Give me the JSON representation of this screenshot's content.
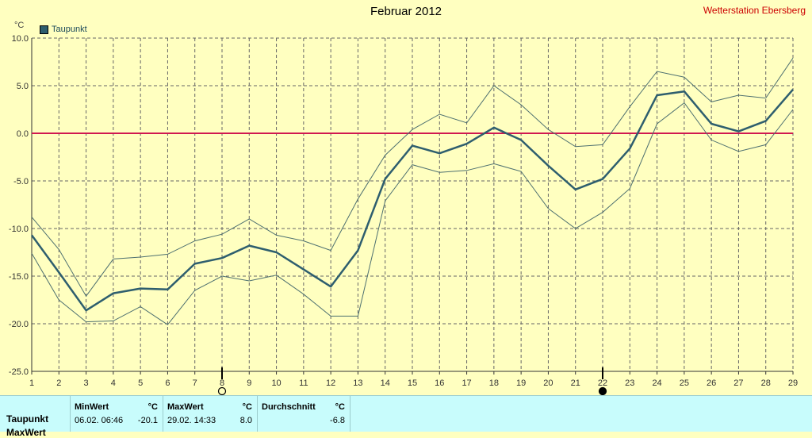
{
  "header": {
    "title": "Februar 2012",
    "station": "Wetterstation Ebersberg",
    "unit": "°C"
  },
  "legend": {
    "label": "Taupunkt"
  },
  "colors": {
    "main": "#2e5e6e",
    "band": "#4e7070",
    "zero": "#d01850",
    "grid": "#666666"
  },
  "chart_data": {
    "type": "line",
    "title": "Februar 2012",
    "ylabel": "°C",
    "xlabel": "",
    "x": [
      1,
      2,
      3,
      4,
      5,
      6,
      7,
      8,
      9,
      10,
      11,
      12,
      13,
      14,
      15,
      16,
      17,
      18,
      19,
      20,
      21,
      22,
      23,
      24,
      25,
      26,
      27,
      28,
      29
    ],
    "xlim": [
      1,
      29
    ],
    "ylim": [
      -25,
      10
    ],
    "yticks": [
      10.0,
      5.0,
      0.0,
      -5.0,
      -10.0,
      -15.0,
      -20.0,
      -25.0
    ],
    "ytick_labels": [
      "10.0",
      "5.0",
      "0.0",
      "-5.0",
      "-10.0",
      "-15.0",
      "-20.0",
      "-25.0"
    ],
    "grid": true,
    "legend_position": "top-left",
    "reference_line": 0.0,
    "series": [
      {
        "name": "Taupunkt",
        "values": [
          -10.7,
          -14.6,
          -18.6,
          -16.8,
          -16.3,
          -16.4,
          -13.7,
          -13.1,
          -11.8,
          -12.5,
          -14.3,
          -16.1,
          -12.3,
          -4.8,
          -1.3,
          -2.1,
          -1.1,
          0.6,
          -0.7,
          -3.4,
          -5.9,
          -4.8,
          -1.6,
          4.0,
          4.4,
          1.0,
          0.2,
          1.3,
          4.6
        ]
      },
      {
        "values": [
          -8.8,
          -12.2,
          -17.1,
          -13.2,
          -13.0,
          -12.7,
          -11.3,
          -10.6,
          -9.0,
          -10.7,
          -11.3,
          -12.3,
          -6.9,
          -2.3,
          0.4,
          2.0,
          1.1,
          5.0,
          3.0,
          0.4,
          -1.4,
          -1.2,
          2.8,
          6.5,
          5.9,
          3.3,
          4.0,
          3.7,
          7.9
        ]
      },
      {
        "values": [
          -12.6,
          -17.5,
          -19.8,
          -19.7,
          -18.2,
          -20.1,
          -16.5,
          -15.0,
          -15.5,
          -14.9,
          -16.9,
          -19.2,
          -19.2,
          -7.1,
          -3.3,
          -4.1,
          -3.9,
          -3.2,
          -4.0,
          -7.9,
          -10.0,
          -8.3,
          -5.8,
          1.0,
          3.2,
          -0.7,
          -1.9,
          -1.2,
          2.5
        ]
      }
    ],
    "markers": [
      {
        "x": 8,
        "kind": "open"
      },
      {
        "x": 22,
        "kind": "filled"
      }
    ]
  },
  "stats": {
    "row_label": "Taupunkt",
    "next_row_label": "MaxWert",
    "min": {
      "header": "MinWert",
      "unit": "°C",
      "datetime": "06.02.  06:46",
      "value": "-20.1"
    },
    "max": {
      "header": "MaxWert",
      "unit": "°C",
      "datetime": "29.02.  14:33",
      "value": "8.0"
    },
    "avg": {
      "header": "Durchschnitt",
      "unit": "°C",
      "value": "-6.8"
    }
  }
}
